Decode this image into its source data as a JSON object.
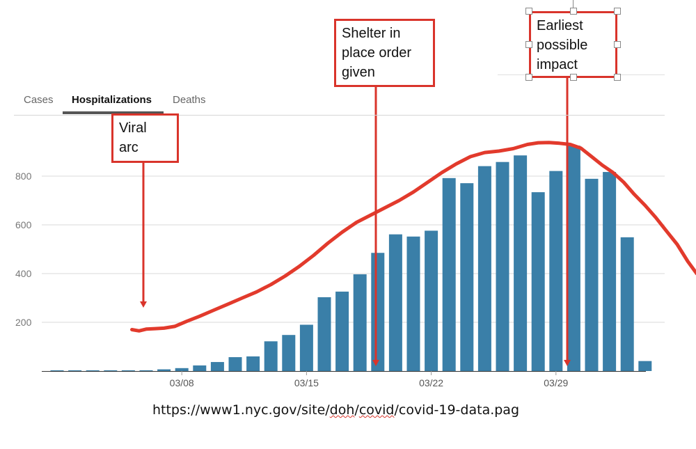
{
  "tabs": [
    "Cases",
    "Hospitalizations",
    "Deaths"
  ],
  "active_tab": "Hospitalizations",
  "callouts": {
    "viral_arc": [
      "Viral",
      "arc"
    ],
    "shelter": [
      "Shelter in",
      "place order",
      "given"
    ],
    "earliest": [
      "Earliest",
      "possible",
      "impact"
    ]
  },
  "url": {
    "before": "https://www1.nyc.gov/site/",
    "doh": "doh",
    "slash1": "/",
    "covid": "covid",
    "after": "/covid-19-data.pag"
  },
  "colors": {
    "bar": "#3a7fa8",
    "arc": "#e23a2c",
    "callout_border": "#d9342b",
    "grid": "#d9d9d9"
  },
  "chart_data": {
    "type": "bar",
    "title": "Hospitalizations",
    "x_tick_labels": [
      "03/08",
      "03/15",
      "03/22",
      "03/29"
    ],
    "x_tick_days": [
      8,
      15,
      22,
      29
    ],
    "first_day": 1,
    "days": [
      1,
      2,
      3,
      4,
      5,
      6,
      7,
      8,
      9,
      10,
      11,
      12,
      13,
      14,
      15,
      16,
      17,
      18,
      19,
      20,
      21,
      22,
      23,
      24,
      25,
      26,
      27,
      28,
      29,
      30,
      31,
      32,
      33,
      34
    ],
    "values": [
      1,
      1,
      1,
      1,
      2,
      3,
      7,
      12,
      23,
      37,
      57,
      60,
      122,
      148,
      190,
      303,
      326,
      397,
      485,
      561,
      552,
      576,
      792,
      771,
      841,
      858,
      885,
      734,
      821,
      925,
      789,
      817,
      549,
      41
    ],
    "yticks": [
      200,
      400,
      600,
      800
    ],
    "ylim": [
      0,
      1050
    ],
    "arc": {
      "name": "Viral arc",
      "x": [
        5.2,
        5.6,
        6.0,
        6.5,
        7.0,
        7.6,
        8.3,
        9.0,
        9.8,
        10.6,
        11.4,
        12.2,
        13.0,
        13.8,
        14.6,
        15.4,
        16.2,
        17.0,
        17.8,
        18.6,
        19.4,
        20.2,
        21.0,
        21.8,
        22.6,
        23.4,
        24.2,
        25.0,
        25.8,
        26.6,
        27.4,
        28.0,
        28.6,
        29.2,
        29.8,
        30.4,
        31.0,
        31.6,
        32.2,
        32.8,
        33.4,
        34.0,
        34.6,
        35.2,
        35.8,
        36.4,
        36.9,
        37.3
      ],
      "y": [
        170,
        165,
        172,
        174,
        176,
        183,
        205,
        225,
        250,
        275,
        300,
        325,
        355,
        390,
        430,
        475,
        525,
        570,
        610,
        640,
        670,
        700,
        735,
        775,
        815,
        850,
        880,
        897,
        903,
        913,
        930,
        937,
        938,
        935,
        930,
        915,
        880,
        845,
        815,
        775,
        725,
        680,
        630,
        575,
        520,
        450,
        400,
        390
      ]
    }
  }
}
